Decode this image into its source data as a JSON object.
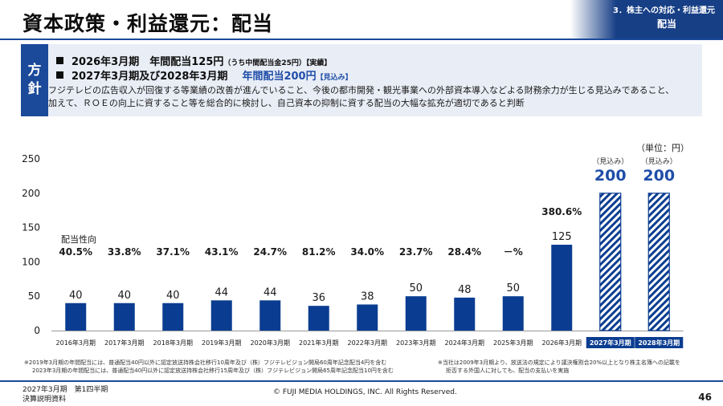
{
  "header": {
    "title": "資本政策・利益還元：配当",
    "section": "3．株主への対応・利益還元",
    "subsection": "配当"
  },
  "policy": {
    "label_line1": "方",
    "label_line2": "針",
    "line1_main": "2026年3月期　年間配当125円",
    "line1_small": "（うち中間配当金25円）",
    "line1_tag": "【実績】",
    "line2_main": "2027年3月期及び2028年3月期",
    "line2_blue": "年間配当200円",
    "line2_tag": "【見込み】",
    "desc_line1": "フジテレビの広告収入が回復する等業績の改善が進んでいること、今後の都市開発・観光事業への外部資本導入などよる財務余力が生じる見込みであること、",
    "desc_line2": "加えて、ＲＯＥの向上に資すること等を総合的に検討し、自己資本の抑制に資する配当の大幅な拡充が適切であると判断"
  },
  "chart_data": {
    "type": "bar",
    "unit_label": "（単位：円）",
    "payout_label": "配当性向",
    "categories": [
      "2016年3月期",
      "2017年3月期",
      "2018年3月期",
      "2019年3月期",
      "2020年3月期",
      "2021年3月期",
      "2022年3月期",
      "2023年3月期",
      "2024年3月期",
      "2025年3月期",
      "2026年3月期",
      "2027年3月期",
      "2028年3月期"
    ],
    "values": [
      40,
      40,
      40,
      44,
      44,
      36,
      38,
      50,
      48,
      50,
      125,
      200,
      200
    ],
    "payout_ratios": [
      "40.5%",
      "33.8%",
      "37.1%",
      "43.1%",
      "24.7%",
      "81.2%",
      "34.0%",
      "23.7%",
      "28.4%",
      "－%",
      "380.6%",
      "",
      ""
    ],
    "forecast": [
      false,
      false,
      false,
      false,
      false,
      false,
      false,
      false,
      false,
      false,
      false,
      true,
      true
    ],
    "forecast_label": "（見込み）",
    "ylim": [
      0,
      250
    ],
    "yticks": [
      0,
      50,
      100,
      150,
      200,
      250
    ],
    "colors": {
      "actual": "#0a3d91",
      "forecast_fill": "#0a3d91",
      "forecast_label_bg": "#0a3d91"
    }
  },
  "notes": {
    "left_line1": "※2019年3月期の年間配当には、普通配当40円以外に認定放送持株会社移行10周年及び（株）フジテレビジョン開局60周年記念配当4円を含む",
    "left_line2": "2023年3月期の年間配当には、普通配当40円以外に認定放送持株会社移行15周年及び（株）フジテレビジョン開局65周年記念配当10円を含む",
    "right_line1": "※当社は2009年3月期より、放送法の規定により議決権割合20%以上となり株主名簿への記載を",
    "right_line2": "拒否する外国人に対しても、配当の支払いを実施"
  },
  "footer": {
    "period_line1": "2027年3月期　第1四半期",
    "period_line2": "決算説明資料",
    "copyright": "© FUJI MEDIA HOLDINGS, INC. All Rights Reserved.",
    "page": "46"
  }
}
